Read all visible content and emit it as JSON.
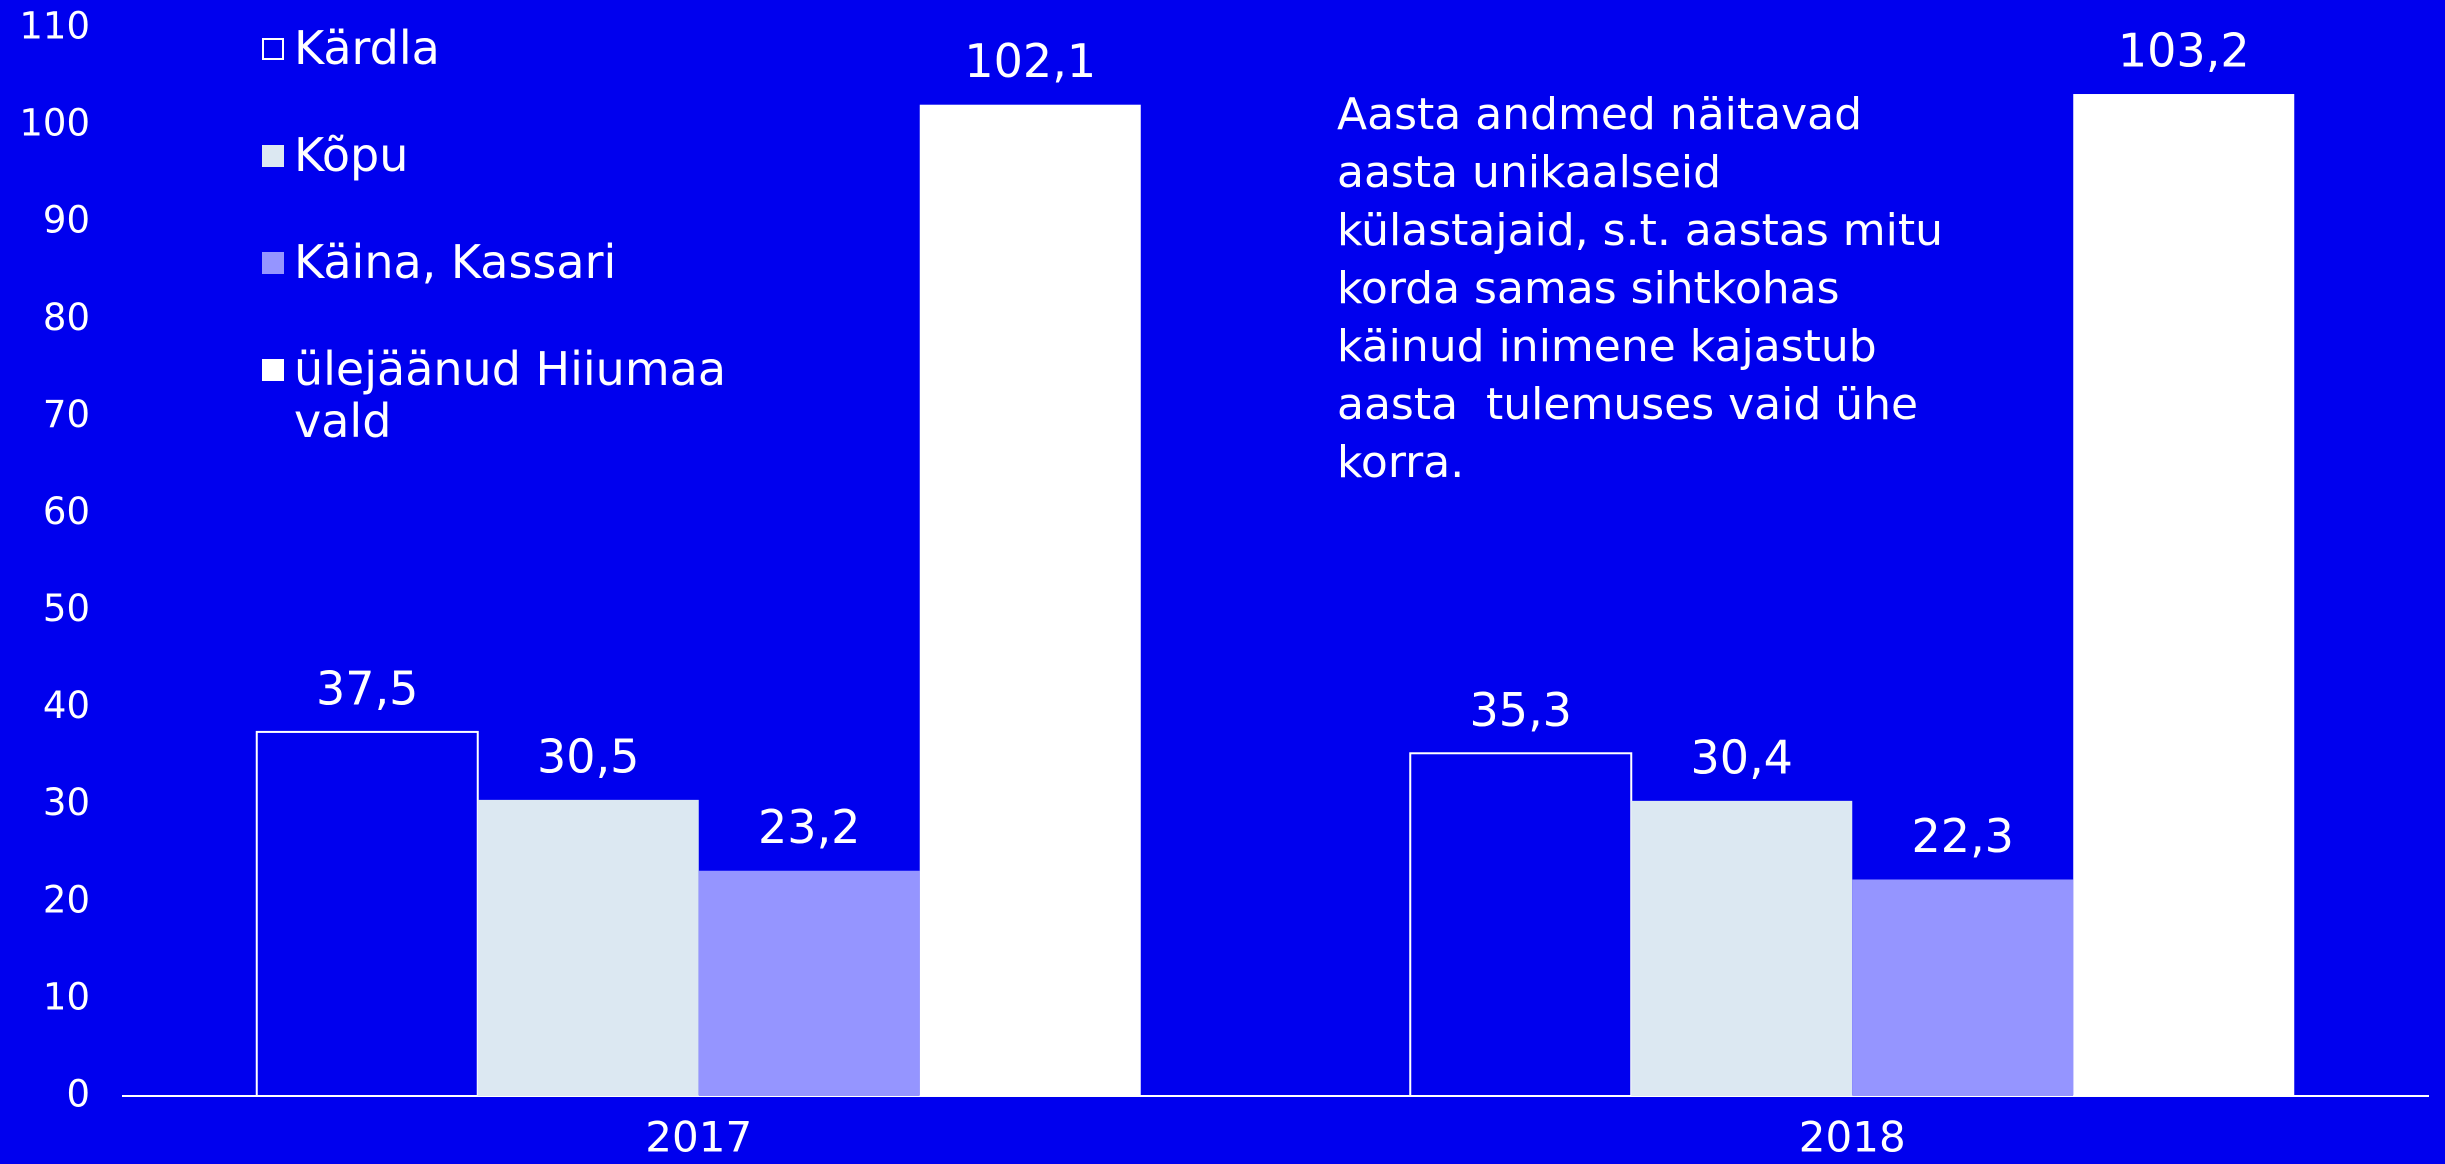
{
  "chart_data": {
    "type": "bar",
    "categories": [
      "2017",
      "2018"
    ],
    "series": [
      {
        "name": "Kärdla",
        "color": "#0000ee",
        "edgecolor": "#ffffff",
        "values": [
          37.5,
          35.3
        ],
        "value_labels": [
          "37,5",
          "35,3"
        ]
      },
      {
        "name": "Kõpu",
        "color": "#dce8f2",
        "values": [
          30.5,
          30.4
        ],
        "value_labels": [
          "30,5",
          "30,4"
        ]
      },
      {
        "name": "Käina, Kassari",
        "color": "#9595ff",
        "values": [
          23.2,
          22.3
        ],
        "value_labels": [
          "23,2",
          "22,3"
        ]
      },
      {
        "name": "ülejäänud Hiiumaa vald",
        "color": "#ffffff",
        "values": [
          102.1,
          103.2
        ],
        "value_labels": [
          "102,1",
          "103,2"
        ]
      }
    ],
    "annotation": "Aasta andmed näitavad aasta unikaalseid külastajaid, s.t. aastas mitu korda samas sihtkohas käinud inimene kajastub aasta  tulemuses vaid ühe korra.",
    "ylim": [
      0,
      110
    ],
    "yticks": [
      0,
      10,
      20,
      30,
      40,
      50,
      60,
      70,
      80,
      90,
      100,
      110
    ],
    "grid": false,
    "legend": "upper left"
  }
}
